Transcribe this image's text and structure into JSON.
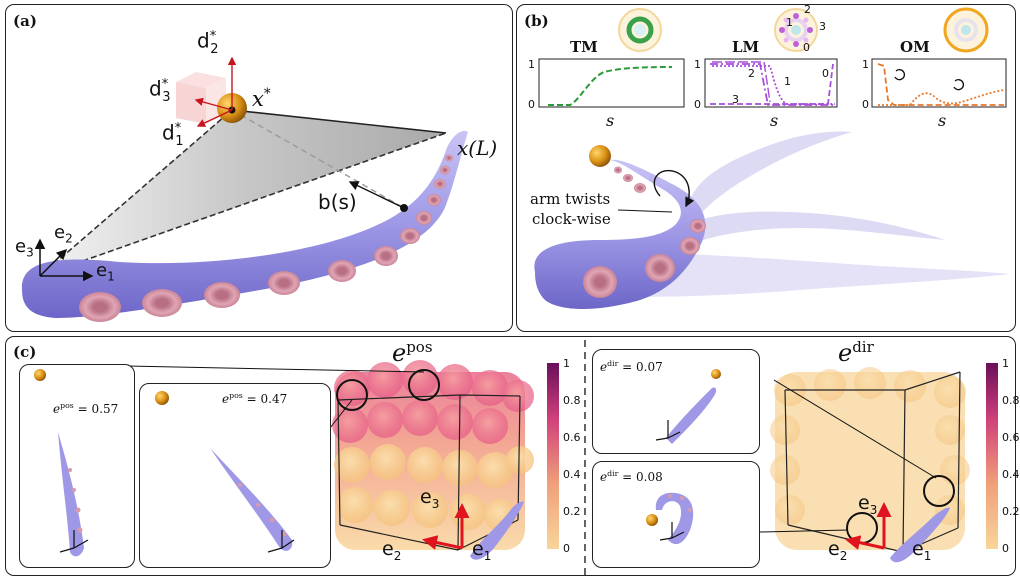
{
  "panels": {
    "a": {
      "label": "(a)",
      "target_labels": {
        "d2": "d",
        "d2_sub": "2",
        "d3": "d",
        "d3_sub": "3",
        "d1": "d",
        "d1_sub": "1",
        "star": "*",
        "x_star": "x",
        "x_star_sup": "*"
      },
      "tip_label": "x(L)",
      "b_label": "b(s)",
      "frame": {
        "e3": "e",
        "e3_sub": "3",
        "e2": "e",
        "e2_sub": "2",
        "e1": "e",
        "e1_sub": "1"
      }
    },
    "b": {
      "label": "(b)",
      "modes": [
        {
          "title": "TM",
          "xlabel": "s",
          "y_top": "1",
          "y_bottom": "0"
        },
        {
          "title": "LM",
          "xlabel": "s",
          "y_top": "1",
          "y_bottom": "0",
          "curve_labels": [
            "2",
            "1",
            "0",
            "3"
          ],
          "icon_labels": [
            "2",
            "1",
            "3",
            "0"
          ]
        },
        {
          "title": "OM",
          "xlabel": "s",
          "y_top": "1",
          "y_bottom": "0"
        }
      ],
      "annotation_line1": "arm twists",
      "annotation_line2": "clock-wise"
    },
    "c": {
      "label": "(c)",
      "pos": {
        "title": "e",
        "title_sup": "pos",
        "inset1_value": "= 0.57",
        "inset2_value": "= 0.47",
        "colorbar_ticks": [
          "1",
          "0.8",
          "0.6",
          "0.4",
          "0.2",
          "0"
        ]
      },
      "dir": {
        "title": "e",
        "title_sup": "dir",
        "inset1_value": "= 0.07",
        "inset2_value": "= 0.08",
        "colorbar_ticks": [
          "1",
          "0.8",
          "0.6",
          "0.4",
          "0.2",
          "0"
        ]
      },
      "e_sym": "e",
      "pos_sup": "pos",
      "dir_sup": "dir"
    }
  },
  "colors": {
    "arm": "#9e98e6",
    "sucker": "#d99aab",
    "target": "#d99a1a",
    "tm_curve": "#2a9a3a",
    "lm_curve": "#a64fd9",
    "om_curve": "#e6782a",
    "axis_red": "#e0141e"
  }
}
